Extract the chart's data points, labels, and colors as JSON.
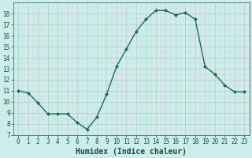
{
  "xlabel": "Humidex (Indice chaleur)",
  "x": [
    0,
    1,
    2,
    3,
    4,
    5,
    6,
    7,
    8,
    9,
    10,
    11,
    12,
    13,
    14,
    15,
    16,
    17,
    18,
    19,
    20,
    21,
    22,
    23
  ],
  "y": [
    11,
    10.8,
    9.9,
    8.9,
    8.9,
    8.9,
    8.1,
    7.5,
    8.6,
    10.7,
    13.2,
    14.8,
    16.4,
    17.5,
    18.3,
    18.3,
    17.9,
    18.1,
    17.5,
    13.2,
    12.5,
    11.5,
    10.9,
    10.9
  ],
  "line_color": "#1a6b5a",
  "marker": "D",
  "marker_size": 2.2,
  "bg_color": "#cceee8",
  "grid_major_color": "#c8c0d0",
  "ylim": [
    7,
    19
  ],
  "xlim": [
    -0.5,
    23.5
  ],
  "yticks": [
    7,
    8,
    9,
    10,
    11,
    12,
    13,
    14,
    15,
    16,
    17,
    18
  ],
  "xticks": [
    0,
    1,
    2,
    3,
    4,
    5,
    6,
    7,
    8,
    9,
    10,
    11,
    12,
    13,
    14,
    15,
    16,
    17,
    18,
    19,
    20,
    21,
    22,
    23
  ],
  "tick_fontsize": 5.5,
  "xlabel_fontsize": 7,
  "line_width": 1.0
}
